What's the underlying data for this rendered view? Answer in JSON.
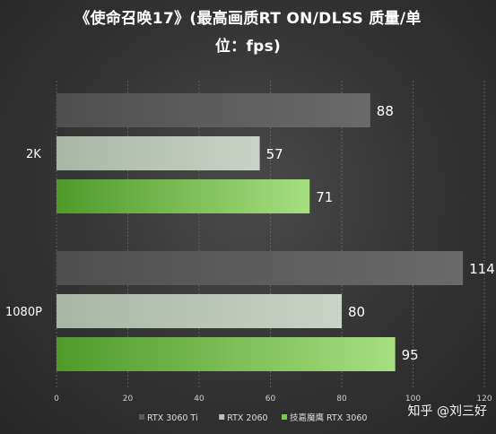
{
  "chart_data": {
    "type": "bar",
    "orientation": "horizontal",
    "title_line1": "《使命召唤17》(最高画质RT ON/DLSS 质量/单",
    "title_line2": "位：fps)",
    "categories": [
      "2K",
      "1080P"
    ],
    "series": [
      {
        "name": "RTX 3060 Ti",
        "values": [
          88,
          114
        ],
        "color": "#5a5a5a"
      },
      {
        "name": "RTX 2060",
        "values": [
          57,
          80
        ],
        "color": "#b7c4b4"
      },
      {
        "name": "技嘉魔鹰 RTX 3060",
        "values": [
          71,
          95
        ],
        "color": "#7cc94f"
      }
    ],
    "xlim": [
      0,
      120
    ],
    "xticks": [
      0,
      20,
      40,
      60,
      80,
      100,
      120
    ],
    "grid": true,
    "legend_position": "bottom-left"
  },
  "watermark": "知乎 @刘三好"
}
